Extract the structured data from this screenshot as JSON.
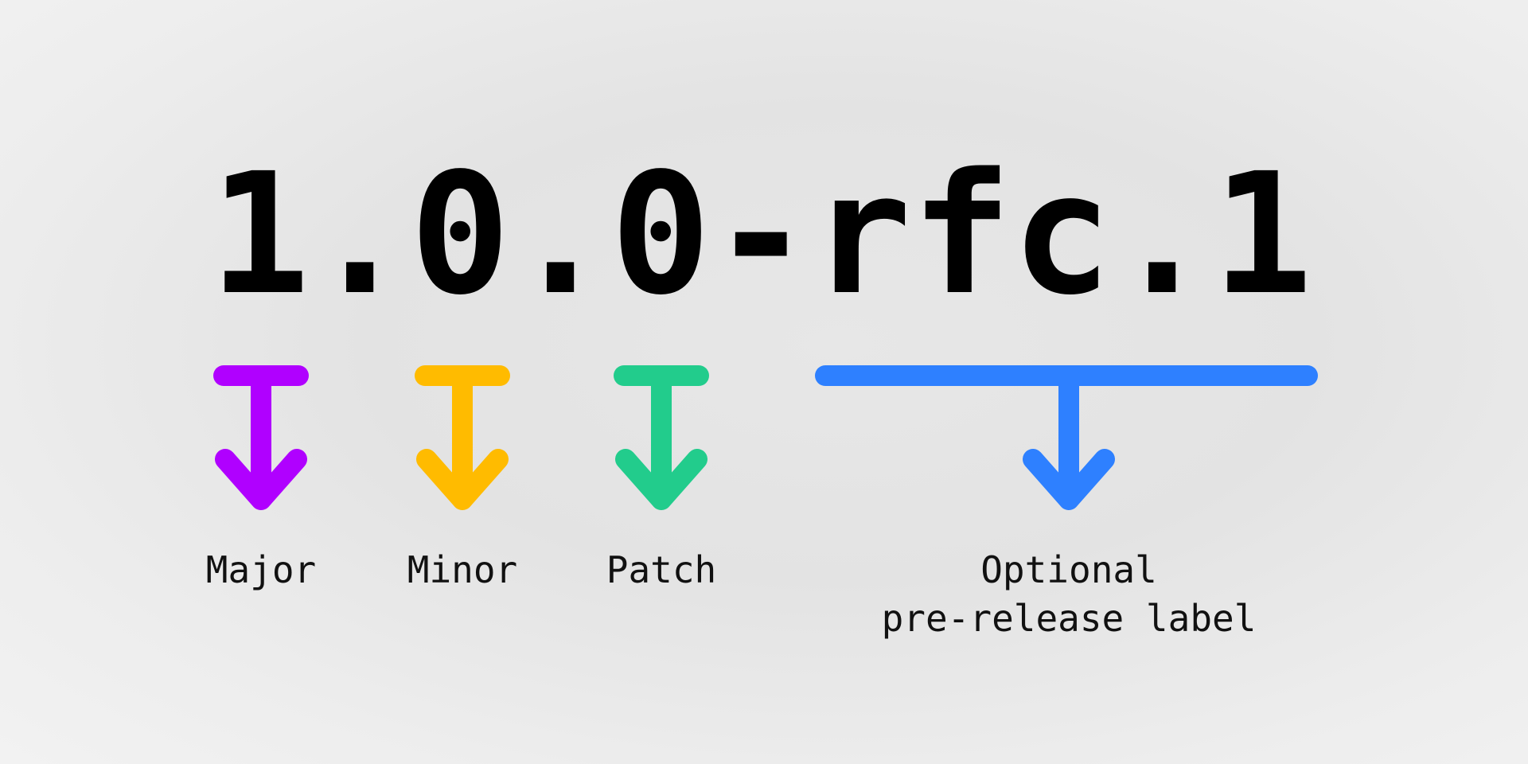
{
  "version": {
    "chars": [
      "1",
      ".",
      "0",
      ".",
      "0",
      "-",
      "r",
      "f",
      "c",
      ".",
      "1"
    ]
  },
  "labels": {
    "major": "Major",
    "minor": "Minor",
    "patch": "Patch",
    "prerelease_line1": "Optional",
    "prerelease_line2": "pre-release label"
  },
  "colors": {
    "major": "#b000ff",
    "minor": "#ffbb00",
    "patch": "#22cc8c",
    "prerelease": "#2e80ff",
    "text": "#000000"
  },
  "icons": {
    "major": "down-arrow-icon",
    "minor": "down-arrow-icon",
    "patch": "down-arrow-icon",
    "prerelease": "down-arrow-icon"
  }
}
